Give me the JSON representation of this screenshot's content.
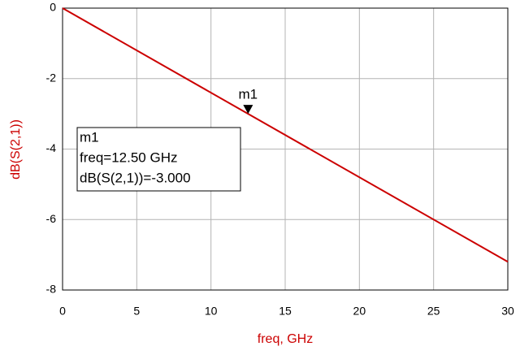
{
  "chart_data": {
    "type": "line",
    "x_label": "freq, GHz",
    "y_label": "dB(S(2,1))",
    "xlim": [
      0,
      30
    ],
    "xticks": [
      0,
      5,
      10,
      15,
      20,
      25,
      30
    ],
    "ylim": [
      -8,
      0
    ],
    "yticks": [
      -8,
      -6,
      -4,
      -2,
      0
    ],
    "grid": true,
    "series": [
      {
        "name": "dB(S(2,1))",
        "color": "#cc0000",
        "x": [
          0,
          30
        ],
        "values": [
          0,
          -7.2
        ]
      }
    ],
    "marker": {
      "name": "m1",
      "x": 12.5,
      "y": -3,
      "lines": [
        "freq=12.50 GHz",
        "dB(S(2,1))=-3.000"
      ]
    }
  }
}
